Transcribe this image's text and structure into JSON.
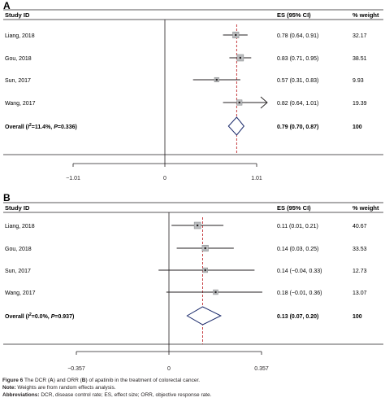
{
  "panels": [
    {
      "letter": "A",
      "header": {
        "study_id": "Study ID",
        "es": "ES (95% CI)",
        "weight": "% weight"
      },
      "chart_data": {
        "type": "forest",
        "xticks": [
          -1.01,
          0,
          1.01
        ],
        "xtick_labels": [
          "−1.01",
          "0",
          "1.01"
        ],
        "xlim": [
          -1.01,
          1.01
        ],
        "reference_line": 0.79,
        "studies": [
          {
            "label": "Liang, 2018",
            "es": 0.78,
            "lo": 0.64,
            "hi": 0.91,
            "es_text": "0.78 (0.64, 0.91)",
            "weight": 32.17,
            "weight_text": "32.17",
            "arrow_hi": false
          },
          {
            "label": "Gou, 2018",
            "es": 0.83,
            "lo": 0.71,
            "hi": 0.95,
            "es_text": "0.83 (0.71, 0.95)",
            "weight": 38.51,
            "weight_text": "38.51",
            "arrow_hi": false
          },
          {
            "label": "Sun, 2017",
            "es": 0.57,
            "lo": 0.31,
            "hi": 0.83,
            "es_text": "0.57 (0.31, 0.83)",
            "weight": 9.93,
            "weight_text": "9.93",
            "arrow_hi": false
          },
          {
            "label": "Wang, 2017",
            "es": 0.82,
            "lo": 0.64,
            "hi": 1.01,
            "es_text": "0.82 (0.64, 1.01)",
            "weight": 19.39,
            "weight_text": "19.39",
            "arrow_hi": true
          }
        ],
        "overall": {
          "label_prefix": "Overall (",
          "label_i": "I",
          "label_sq": "2",
          "label_mid": "=11.4%, ",
          "label_p": "P",
          "label_end": "=0.336)",
          "es": 0.79,
          "lo": 0.7,
          "hi": 0.87,
          "es_text": "0.79 (0.70, 0.87)",
          "weight_text": "100"
        }
      }
    },
    {
      "letter": "B",
      "header": {
        "study_id": "Study ID",
        "es": "ES (95% CI)",
        "weight": "% weight"
      },
      "chart_data": {
        "type": "forest",
        "xticks": [
          -0.357,
          0,
          0.357
        ],
        "xtick_labels": [
          "−0.357",
          "0",
          "0.357"
        ],
        "xlim": [
          -0.357,
          0.357
        ],
        "reference_line": 0.13,
        "studies": [
          {
            "label": "Liang, 2018",
            "es": 0.11,
            "lo": 0.01,
            "hi": 0.21,
            "es_text": "0.11 (0.01, 0.21)",
            "weight": 40.67,
            "weight_text": "40.67",
            "arrow_hi": false
          },
          {
            "label": "Gou, 2018",
            "es": 0.14,
            "lo": 0.03,
            "hi": 0.25,
            "es_text": "0.14 (0.03, 0.25)",
            "weight": 33.53,
            "weight_text": "33.53",
            "arrow_hi": false
          },
          {
            "label": "Sun, 2017",
            "es": 0.14,
            "lo": -0.04,
            "hi": 0.33,
            "es_text": "0.14 (−0.04, 0.33)",
            "weight": 12.73,
            "weight_text": "12.73",
            "arrow_hi": false
          },
          {
            "label": "Wang, 2017",
            "es": 0.18,
            "lo": -0.01,
            "hi": 0.36,
            "es_text": "0.18 (−0.01, 0.36)",
            "weight": 13.07,
            "weight_text": "13.07",
            "arrow_hi": false
          }
        ],
        "overall": {
          "label_prefix": "Overall (",
          "label_i": "I",
          "label_sq": "2",
          "label_mid": "=0.0%, ",
          "label_p": "P",
          "label_end": "=0.937)",
          "es": 0.13,
          "lo": 0.07,
          "hi": 0.2,
          "es_text": "0.13 (0.07, 0.20)",
          "weight_text": "100"
        }
      }
    }
  ],
  "caption": {
    "figure_label": "Figure 6",
    "figure_text": " The DCR (",
    "figure_a": "A",
    "figure_mid": ") and ORR (",
    "figure_b": "B",
    "figure_end": ") of apatinib in the treatment of colorectal cancer.",
    "note_label": "Note:",
    "note_text": " Weights are from random effects analysis.",
    "abbr_label": "Abbreviations:",
    "abbr_text": " DCR, disease control rate; ES, effect size; ORR, objective response rate."
  },
  "colors": {
    "line": "#231f20",
    "reference": "#c0282d",
    "overall_diamond": "#1b2a6b",
    "box_fill": "#bcbec0",
    "box_stroke": "#808285"
  }
}
